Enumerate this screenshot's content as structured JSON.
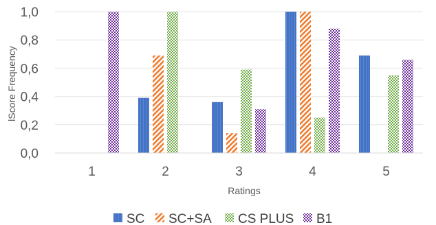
{
  "chart_data": {
    "type": "bar",
    "title": "",
    "xlabel": "Ratings",
    "ylabel": "lScore Frequency",
    "categories": [
      "1",
      "2",
      "3",
      "4",
      "5"
    ],
    "ylim": [
      0,
      1
    ],
    "yticks": [
      "0,0",
      "0,2",
      "0,4",
      "0,6",
      "0,8",
      "1,0"
    ],
    "grid": true,
    "legend_position": "bottom",
    "series": [
      {
        "name": "SC",
        "values": [
          0,
          0.39,
          0.36,
          1.0,
          0.69
        ],
        "color": "#4472C4",
        "pattern": "solid"
      },
      {
        "name": "SC+SA",
        "values": [
          0,
          0.69,
          0.14,
          1.0,
          0
        ],
        "color": "#ED7D31",
        "pattern": "diagonal-stripes"
      },
      {
        "name": "CS PLUS",
        "values": [
          0,
          1.0,
          0.59,
          0.25,
          0.55
        ],
        "color": "#70AD47",
        "pattern": "checker"
      },
      {
        "name": "B1",
        "values": [
          1.0,
          0,
          0.31,
          0.88,
          0.66
        ],
        "color": "#7030A0",
        "pattern": "checker"
      }
    ]
  }
}
